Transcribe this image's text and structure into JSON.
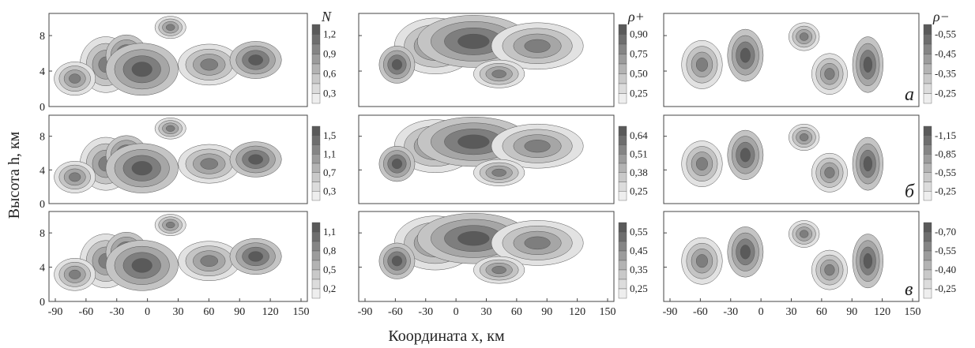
{
  "figure": {
    "y_label": "Высота h, км",
    "x_label": "Координата x, км",
    "x_ticks": [
      "-90",
      "-60",
      "-30",
      "0",
      "30",
      "60",
      "90",
      "120",
      "150"
    ],
    "y_ticks": [
      "0",
      "4",
      "8"
    ]
  },
  "chart_data": [
    {
      "type": "heatmap",
      "row": "a",
      "column": "N",
      "colorbar_title": "N",
      "colorbar_ticks": [
        "1,2",
        "0,9",
        "0,6",
        "0,3"
      ],
      "panel_label": ""
    },
    {
      "type": "heatmap",
      "row": "a",
      "column": "rho_plus",
      "colorbar_title": "ρ+",
      "colorbar_ticks": [
        "0,90",
        "0,75",
        "0,50",
        "0,25"
      ],
      "panel_label": ""
    },
    {
      "type": "heatmap",
      "row": "a",
      "column": "rho_minus",
      "colorbar_title": "ρ−",
      "colorbar_ticks": [
        "-0,55",
        "-0,45",
        "-0,35",
        "-0,25"
      ],
      "panel_label": "а"
    },
    {
      "type": "heatmap",
      "row": "b",
      "column": "N",
      "colorbar_title": "",
      "colorbar_ticks": [
        "1,5",
        "1,1",
        "0,7",
        "0,3"
      ],
      "panel_label": ""
    },
    {
      "type": "heatmap",
      "row": "b",
      "column": "rho_plus",
      "colorbar_title": "",
      "colorbar_ticks": [
        "0,64",
        "0,51",
        "0,38",
        "0,25"
      ],
      "panel_label": ""
    },
    {
      "type": "heatmap",
      "row": "b",
      "column": "rho_minus",
      "colorbar_title": "",
      "colorbar_ticks": [
        "-1,15",
        "-0,85",
        "-0,55",
        "-0,25"
      ],
      "panel_label": "б"
    },
    {
      "type": "heatmap",
      "row": "c",
      "column": "N",
      "colorbar_title": "",
      "colorbar_ticks": [
        "1,1",
        "0,8",
        "0,5",
        "0,2"
      ],
      "panel_label": ""
    },
    {
      "type": "heatmap",
      "row": "c",
      "column": "rho_plus",
      "colorbar_title": "",
      "colorbar_ticks": [
        "0,55",
        "0,45",
        "0,35",
        "0,25"
      ],
      "panel_label": ""
    },
    {
      "type": "heatmap",
      "row": "c",
      "column": "rho_minus",
      "colorbar_title": "",
      "colorbar_ticks": [
        "-0,70",
        "-0,55",
        "-0,40",
        "-0,25"
      ],
      "panel_label": "в"
    }
  ]
}
